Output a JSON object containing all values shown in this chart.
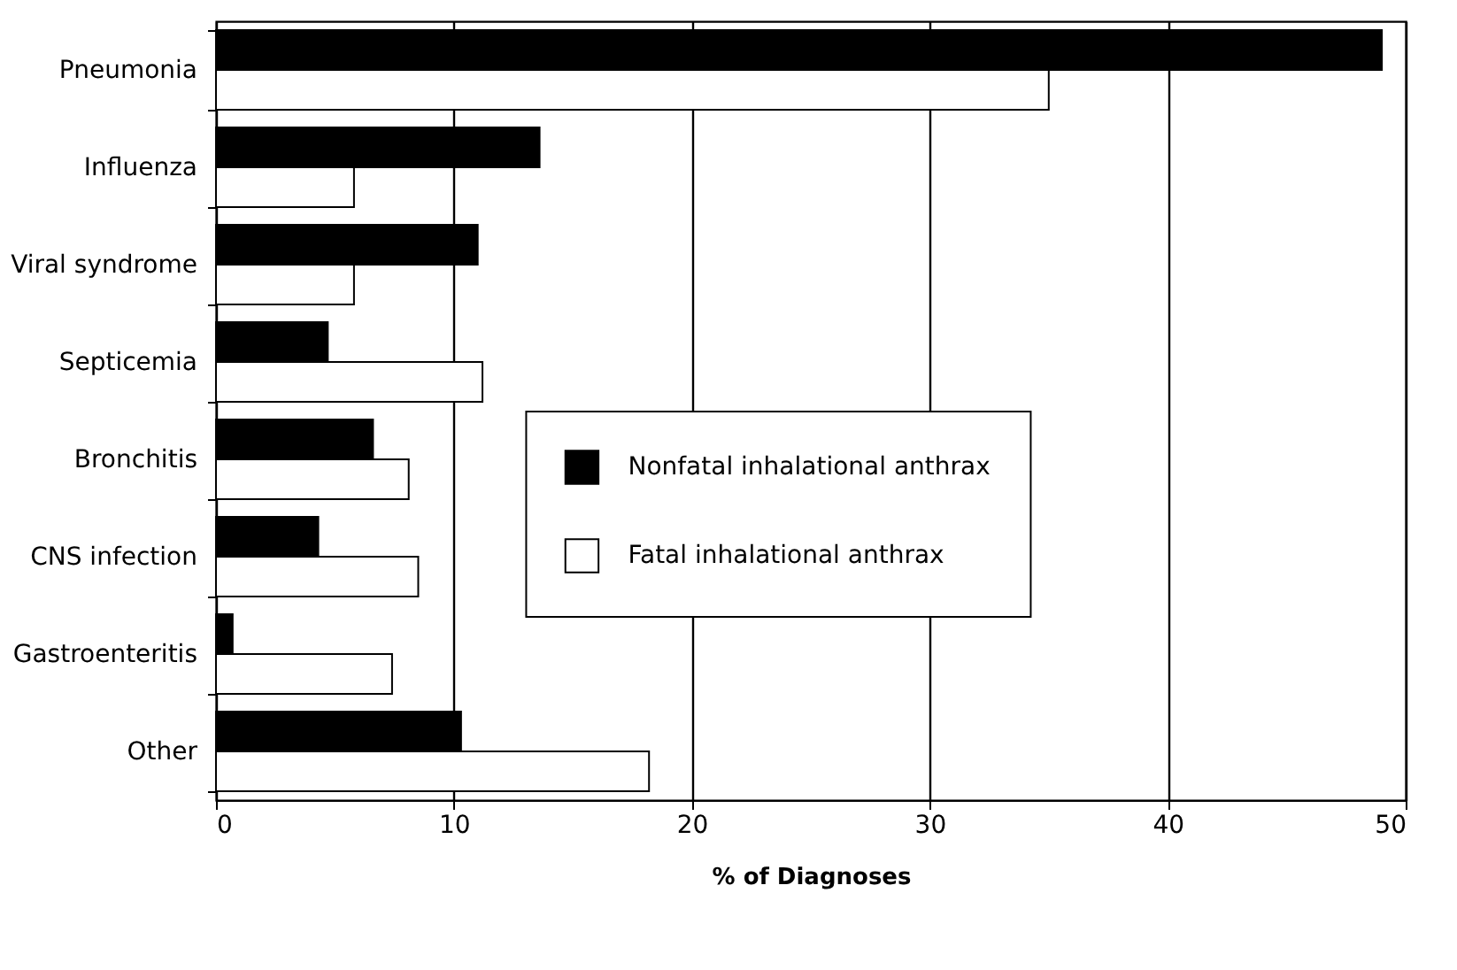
{
  "chart_data": {
    "type": "bar",
    "orientation": "horizontal",
    "xlabel": "% of Diagnoses",
    "categories": [
      "Pneumonia",
      "Influenza",
      "Viral syndrome",
      "Septicemia",
      "Bronchitis",
      "CNS infection",
      "Gastroenteritis",
      "Other"
    ],
    "series": [
      {
        "name": "Nonfatal inhalational anthrax",
        "color": "#000000",
        "values": [
          49,
          13.6,
          11.0,
          4.7,
          6.6,
          4.3,
          0.7,
          10.3
        ]
      },
      {
        "name": "Fatal inhalational anthrax",
        "color": "#ffffff",
        "values": [
          35,
          5.8,
          5.8,
          11.2,
          8.1,
          8.5,
          7.4,
          18.2
        ]
      }
    ],
    "xlim": [
      0,
      50
    ],
    "xticks": [
      0,
      10,
      20,
      30,
      40,
      50
    ],
    "grid": "x",
    "legend": "right"
  }
}
